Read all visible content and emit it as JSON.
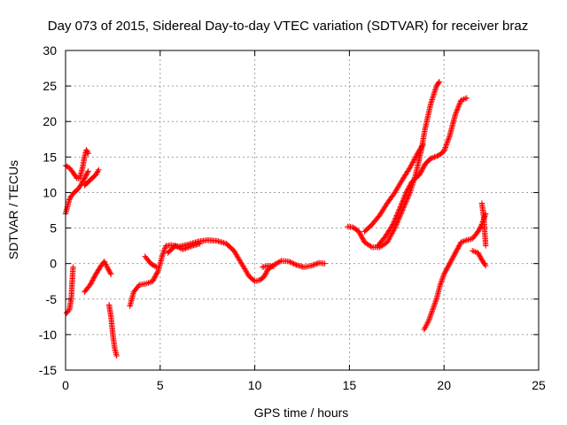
{
  "chart_data": {
    "type": "scatter",
    "title": "Day 073 of 2015, Sidereal Day-to-day VTEC variation (SDTVAR) for receiver braz",
    "xlabel": "GPS time / hours",
    "ylabel": "SDTVAR / TECUs",
    "xlim": [
      0,
      25
    ],
    "ylim": [
      -15,
      30
    ],
    "xticks": [
      0,
      5,
      10,
      15,
      20,
      25
    ],
    "yticks": [
      -15,
      -10,
      -5,
      0,
      5,
      10,
      15,
      20,
      25,
      30
    ],
    "grid": true,
    "marker": "+",
    "color": "#ff0000",
    "series": [
      {
        "points": [
          [
            0.0,
            7.0
          ],
          [
            0.1,
            8.0
          ],
          [
            0.2,
            9.0
          ],
          [
            0.3,
            9.5
          ],
          [
            0.45,
            10.0
          ],
          [
            0.6,
            10.3
          ],
          [
            0.8,
            11.0
          ],
          [
            1.0,
            12.0
          ],
          [
            1.2,
            13.0
          ]
        ]
      },
      {
        "points": [
          [
            0.0,
            13.8
          ],
          [
            0.2,
            13.5
          ],
          [
            0.4,
            12.8
          ],
          [
            0.6,
            12.0
          ],
          [
            0.75,
            12.0
          ],
          [
            0.9,
            13.5
          ],
          [
            1.0,
            15.0
          ],
          [
            1.1,
            16.0
          ],
          [
            1.2,
            15.5
          ]
        ]
      },
      {
        "points": [
          [
            1.0,
            11.0
          ],
          [
            1.2,
            11.5
          ],
          [
            1.4,
            12.0
          ],
          [
            1.6,
            12.5
          ],
          [
            1.75,
            13.2
          ]
        ]
      },
      {
        "points": [
          [
            0.05,
            -7.0
          ],
          [
            0.2,
            -6.5
          ],
          [
            0.3,
            -5.0
          ],
          [
            0.35,
            -2.5
          ],
          [
            0.4,
            -0.5
          ]
        ]
      },
      {
        "points": [
          [
            1.0,
            -4.0
          ],
          [
            1.3,
            -3.0
          ],
          [
            1.6,
            -1.5
          ],
          [
            1.9,
            -0.2
          ],
          [
            2.05,
            0.3
          ],
          [
            2.2,
            -0.5
          ],
          [
            2.4,
            -1.5
          ]
        ]
      },
      {
        "points": [
          [
            2.3,
            -5.8
          ],
          [
            2.4,
            -7.5
          ],
          [
            2.5,
            -10.0
          ],
          [
            2.6,
            -12.0
          ],
          [
            2.7,
            -13.0
          ]
        ]
      },
      {
        "points": [
          [
            3.4,
            -6.0
          ],
          [
            3.6,
            -4.0
          ],
          [
            3.9,
            -3.0
          ],
          [
            4.3,
            -2.8
          ],
          [
            4.6,
            -2.5
          ],
          [
            4.9,
            -1.0
          ],
          [
            5.1,
            1.0
          ],
          [
            5.3,
            2.5
          ],
          [
            5.6,
            2.6
          ],
          [
            6.0,
            2.4
          ],
          [
            6.5,
            2.7
          ],
          [
            7.0,
            3.1
          ],
          [
            7.5,
            3.3
          ],
          [
            8.0,
            3.2
          ],
          [
            8.5,
            2.8
          ],
          [
            8.9,
            1.8
          ],
          [
            9.3,
            0.0
          ],
          [
            9.7,
            -1.8
          ],
          [
            10.0,
            -2.5
          ],
          [
            10.3,
            -2.3
          ],
          [
            10.5,
            -1.8
          ],
          [
            10.7,
            -0.8
          ],
          [
            11.0,
            -0.2
          ],
          [
            11.4,
            0.4
          ],
          [
            11.8,
            0.3
          ],
          [
            12.2,
            -0.2
          ],
          [
            12.6,
            -0.5
          ],
          [
            13.0,
            -0.3
          ],
          [
            13.4,
            0.1
          ],
          [
            13.7,
            0.0
          ]
        ]
      },
      {
        "points": [
          [
            4.2,
            1.0
          ],
          [
            4.5,
            0.0
          ],
          [
            4.8,
            -0.5
          ]
        ]
      },
      {
        "points": [
          [
            5.4,
            1.5
          ],
          [
            5.8,
            2.5
          ],
          [
            6.2,
            2.0
          ],
          [
            6.7,
            2.5
          ],
          [
            7.1,
            2.8
          ]
        ]
      },
      {
        "points": [
          [
            10.4,
            -0.5
          ],
          [
            10.7,
            -0.3
          ],
          [
            11.0,
            -0.4
          ]
        ]
      },
      {
        "points": [
          [
            14.9,
            5.2
          ],
          [
            15.2,
            5.1
          ],
          [
            15.5,
            4.5
          ],
          [
            15.8,
            3.0
          ],
          [
            16.2,
            2.3
          ],
          [
            16.6,
            2.3
          ],
          [
            17.0,
            3.0
          ],
          [
            17.4,
            5.0
          ],
          [
            17.8,
            7.5
          ],
          [
            18.2,
            10.0
          ],
          [
            18.5,
            12.5
          ],
          [
            18.8,
            16.0
          ],
          [
            19.0,
            19.0
          ],
          [
            19.3,
            22.5
          ],
          [
            19.6,
            25.0
          ],
          [
            19.75,
            25.6
          ]
        ]
      },
      {
        "points": [
          [
            15.8,
            4.5
          ],
          [
            16.2,
            5.5
          ],
          [
            16.6,
            6.8
          ],
          [
            17.0,
            8.5
          ],
          [
            17.4,
            10.0
          ],
          [
            17.8,
            11.8
          ],
          [
            18.2,
            13.5
          ],
          [
            18.6,
            15.5
          ],
          [
            18.9,
            16.8
          ]
        ]
      },
      {
        "points": [
          [
            16.5,
            2.5
          ],
          [
            16.9,
            3.8
          ],
          [
            17.3,
            5.5
          ],
          [
            17.7,
            8.0
          ],
          [
            18.0,
            10.0
          ],
          [
            18.3,
            11.5
          ],
          [
            18.7,
            12.5
          ],
          [
            19.0,
            14.0
          ],
          [
            19.3,
            14.8
          ],
          [
            19.7,
            15.2
          ],
          [
            20.0,
            15.8
          ],
          [
            20.3,
            18.0
          ],
          [
            20.6,
            21.0
          ],
          [
            20.9,
            23.0
          ],
          [
            21.2,
            23.3
          ]
        ]
      },
      {
        "points": [
          [
            18.95,
            -9.3
          ],
          [
            19.2,
            -8.0
          ],
          [
            19.4,
            -6.5
          ],
          [
            19.6,
            -5.0
          ],
          [
            19.8,
            -3.0
          ],
          [
            20.0,
            -1.5
          ],
          [
            20.3,
            0.0
          ],
          [
            20.6,
            1.5
          ],
          [
            20.9,
            3.0
          ],
          [
            21.2,
            3.3
          ],
          [
            21.5,
            3.5
          ],
          [
            21.8,
            4.5
          ],
          [
            22.0,
            5.5
          ],
          [
            22.2,
            7.0
          ]
        ]
      },
      {
        "points": [
          [
            21.5,
            1.8
          ],
          [
            21.8,
            1.5
          ],
          [
            22.0,
            0.5
          ],
          [
            22.2,
            -0.3
          ]
        ]
      },
      {
        "points": [
          [
            22.0,
            8.5
          ],
          [
            22.1,
            6.5
          ],
          [
            22.15,
            4.5
          ],
          [
            22.2,
            2.5
          ]
        ]
      }
    ]
  }
}
